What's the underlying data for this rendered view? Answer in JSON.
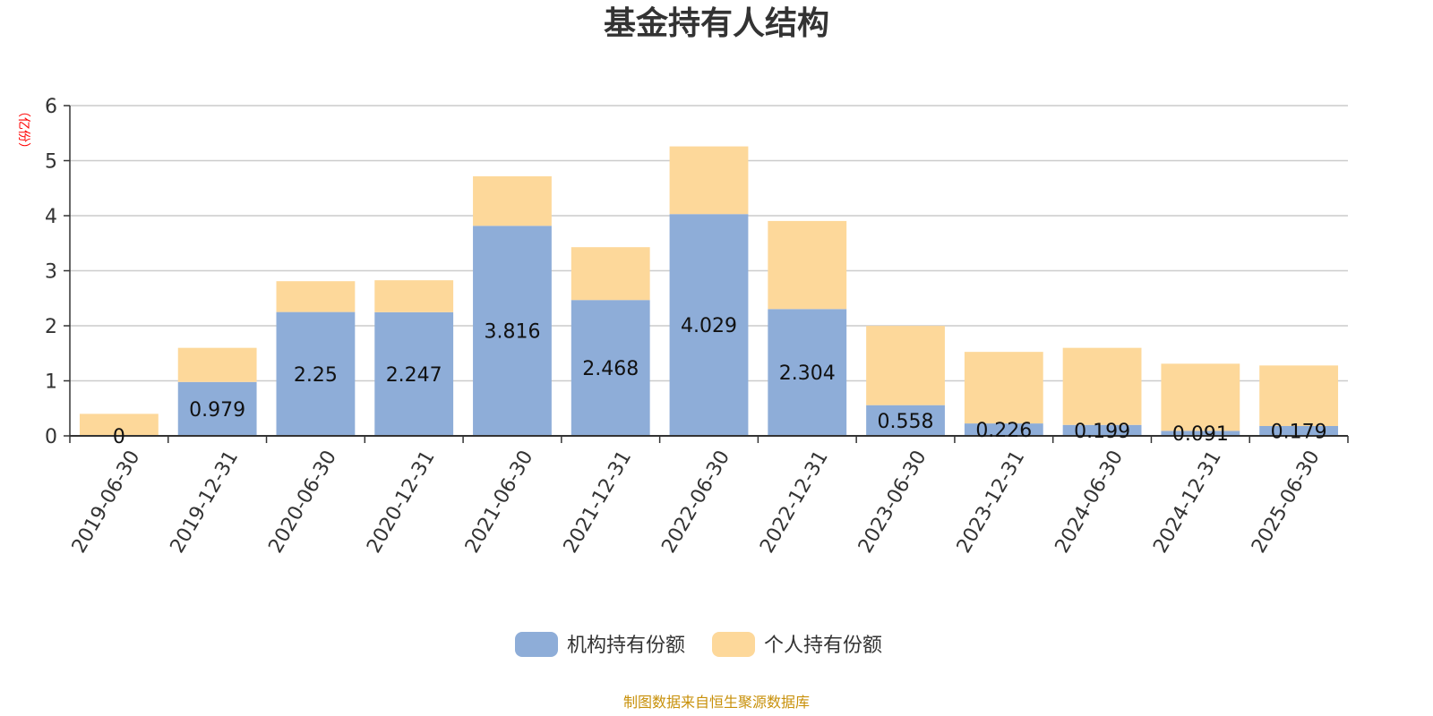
{
  "chart_data": {
    "type": "bar",
    "stacked": true,
    "title": "基金持有人结构",
    "unit_label": "（亿份）",
    "categories": [
      "2019-06-30",
      "2019-12-31",
      "2020-06-30",
      "2020-12-31",
      "2021-06-30",
      "2021-12-31",
      "2022-06-30",
      "2022-12-31",
      "2023-06-30",
      "2023-12-31",
      "2024-06-30",
      "2024-12-31",
      "2025-06-30"
    ],
    "series": [
      {
        "name": "机构持有份额",
        "color": "#8eadd8",
        "values": [
          0,
          0.979,
          2.25,
          2.247,
          3.816,
          2.468,
          4.029,
          2.304,
          0.558,
          0.226,
          0.199,
          0.091,
          0.179
        ],
        "labels": [
          "0",
          "0.979",
          "2.25",
          "2.247",
          "3.816",
          "2.468",
          "4.029",
          "2.304",
          "0.558",
          "0.226",
          "0.199",
          "0.091",
          "0.179"
        ]
      },
      {
        "name": "个人持有份额",
        "color": "#fdd89a",
        "values": [
          0.4,
          0.62,
          0.56,
          0.58,
          0.9,
          0.96,
          1.23,
          1.6,
          1.44,
          1.3,
          1.4,
          1.22,
          1.1
        ]
      }
    ],
    "ylim": [
      0,
      6
    ],
    "yticks": [
      0,
      1,
      2,
      3,
      4,
      5,
      6
    ],
    "grid": true,
    "legend_position": "bottom-center"
  },
  "source_note": "制图数据来自恒生聚源数据库"
}
